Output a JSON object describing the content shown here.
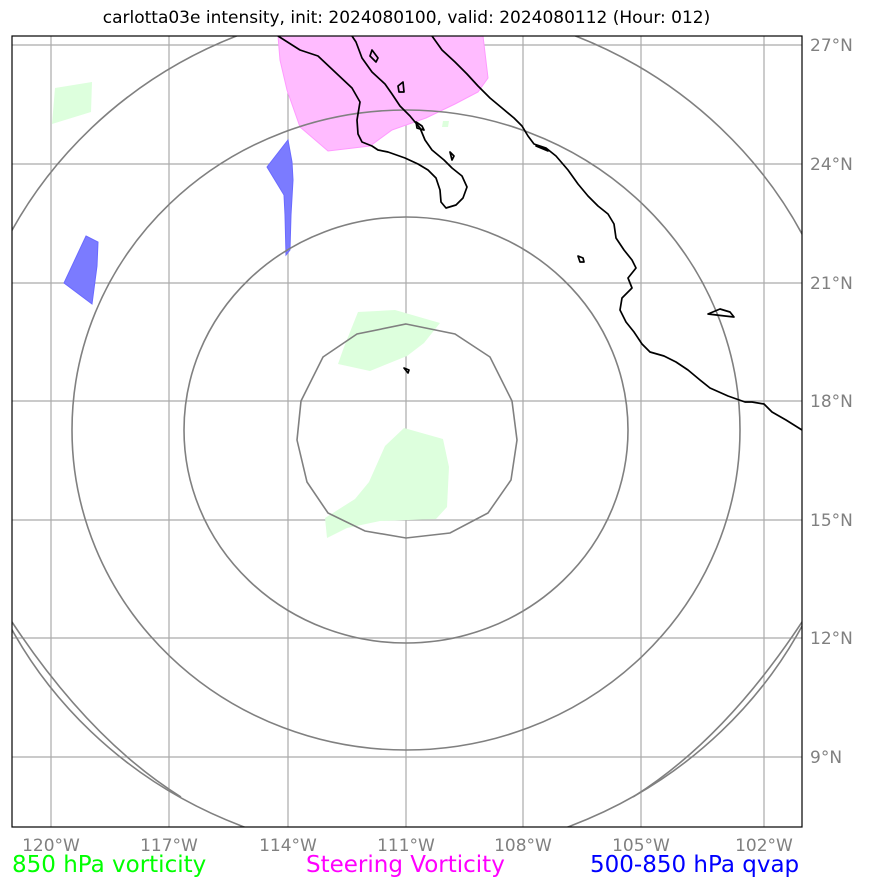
{
  "title": "carlotta03e intensity, init: 2024080100, valid: 2024080112 (Hour: 012)",
  "lon_labels": [
    "120°W",
    "117°W",
    "114°W",
    "111°W",
    "108°W",
    "105°W",
    "102°W"
  ],
  "lat_labels": [
    "27°N",
    "24°N",
    "21°N",
    "18°N",
    "15°N",
    "12°N",
    "9°N"
  ],
  "legend": {
    "vort850": {
      "label": "850 hPa vorticity",
      "color": "#00ff00"
    },
    "steering": {
      "label": "Steering Vorticity",
      "color": "#ff00ff"
    },
    "qvap": {
      "label": "500-850 hPa qvap",
      "color": "#0000ff"
    }
  },
  "fill_colors": {
    "vort850": "#ddffdd",
    "steering": "#ffbbff",
    "qvap": "#7b7bff"
  },
  "grid_color": "#aaaaaa",
  "ring_color": "#808080",
  "coast_color": "#000000"
}
